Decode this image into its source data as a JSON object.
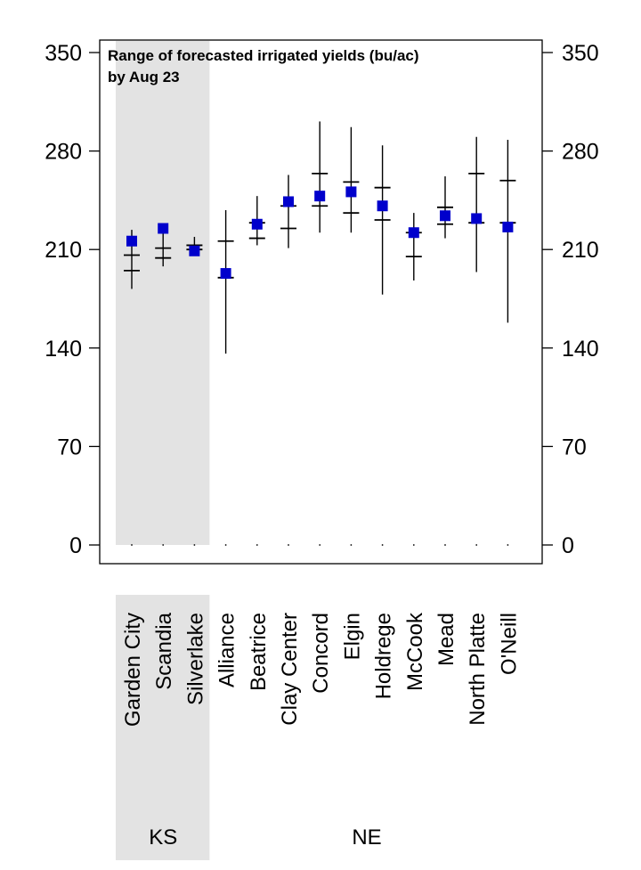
{
  "chart_data": {
    "type": "range-plot",
    "title_lines": [
      "Range of forecasted irrigated yields (bu/ac)",
      "by Aug 23"
    ],
    "ylim": [
      0,
      350
    ],
    "yticks": [
      0,
      70,
      140,
      210,
      280,
      350
    ],
    "grid": false,
    "marker_color": "#0000CC",
    "shade_color": "#E3E3E3",
    "regions": [
      {
        "label": "KS",
        "first_index": 0,
        "last_index": 2
      },
      {
        "label": "NE",
        "first_index": 3,
        "last_index": 12
      }
    ],
    "categories": [
      "Garden City",
      "Scandia",
      "Silverlake",
      "Alliance",
      "Beatrice",
      "Clay Center",
      "Concord",
      "Elgin",
      "Holdrege",
      "McCook",
      "Mead",
      "North Platte",
      "O'Neill"
    ],
    "min": [
      182,
      198,
      208,
      136,
      213,
      211,
      222,
      222,
      178,
      188,
      218,
      194,
      158
    ],
    "max": [
      224,
      226,
      219,
      238,
      248,
      263,
      301,
      297,
      284,
      236,
      262,
      290,
      288
    ],
    "q_lower": [
      195,
      204,
      210,
      190,
      218,
      225,
      241,
      236,
      231,
      205,
      228,
      229,
      229
    ],
    "q_upper": [
      206,
      211,
      213,
      216,
      229,
      241,
      264,
      258,
      254,
      222,
      240,
      264,
      259
    ],
    "forecast": [
      216,
      225,
      209,
      193,
      228,
      244,
      248,
      251,
      241,
      222,
      234,
      232,
      226
    ]
  }
}
